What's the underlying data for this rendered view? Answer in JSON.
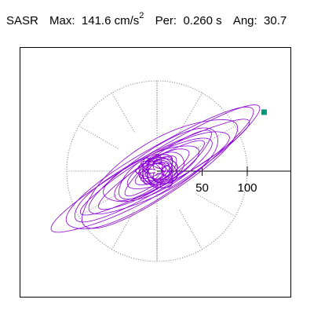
{
  "header": {
    "label": "SASR",
    "max_label": "Max:",
    "max_value": "141.6",
    "max_units": "cm/s",
    "max_exp": "2",
    "period_label": "Per:",
    "period_value": "0.260 s",
    "angle_label": "Ang:",
    "angle_value": "30.7"
  },
  "chart_data": {
    "type": "orbit",
    "quantity": "acceleration",
    "units": "cm/s^2",
    "max": 141.6,
    "period_s": 0.26,
    "angle_deg": 30.7,
    "axis_ticks": [
      "50",
      "100"
    ],
    "tick_values": [
      50,
      100
    ],
    "grid": "polar-dotted",
    "grid_radius": 100,
    "grid_spoke_angles_deg": [
      0,
      30,
      60,
      90,
      120,
      150,
      180,
      210,
      240,
      270,
      300,
      330
    ],
    "peak_marker": {
      "x": 118.6,
      "y": 65.3,
      "color": "#009977"
    },
    "trace_color": "#8a00d4",
    "orbit": [
      {
        "a": 132,
        "b": 22,
        "rot": 30.7,
        "phase": 0
      },
      {
        "a": 120,
        "b": 26,
        "rot": 32,
        "phase": 40
      },
      {
        "a": 110,
        "b": 20,
        "rot": 29,
        "phase": 90
      },
      {
        "a": 100,
        "b": 30,
        "rot": 33,
        "phase": 130
      },
      {
        "a": 92,
        "b": 18,
        "rot": 28,
        "phase": 170
      },
      {
        "a": 82,
        "b": 24,
        "rot": 31,
        "phase": 210
      },
      {
        "a": 74,
        "b": 16,
        "rot": 34,
        "phase": 250
      },
      {
        "a": 66,
        "b": 20,
        "rot": 27,
        "phase": 290
      },
      {
        "a": 58,
        "b": 14,
        "rot": 32,
        "phase": 330
      },
      {
        "a": 50,
        "b": 18,
        "rot": 30,
        "phase": 20
      },
      {
        "a": 42,
        "b": 12,
        "rot": 35,
        "phase": 60
      },
      {
        "a": 34,
        "b": 15,
        "rot": 26,
        "phase": 100
      },
      {
        "a": 26,
        "b": 10,
        "rot": 31,
        "phase": 140
      },
      {
        "a": 20,
        "b": 12,
        "rot": 36,
        "phase": 180
      },
      {
        "a": 14,
        "b": 9,
        "rot": 24,
        "phase": 220
      },
      {
        "a": 10,
        "b": 8,
        "rot": 40,
        "phase": 260
      }
    ]
  }
}
